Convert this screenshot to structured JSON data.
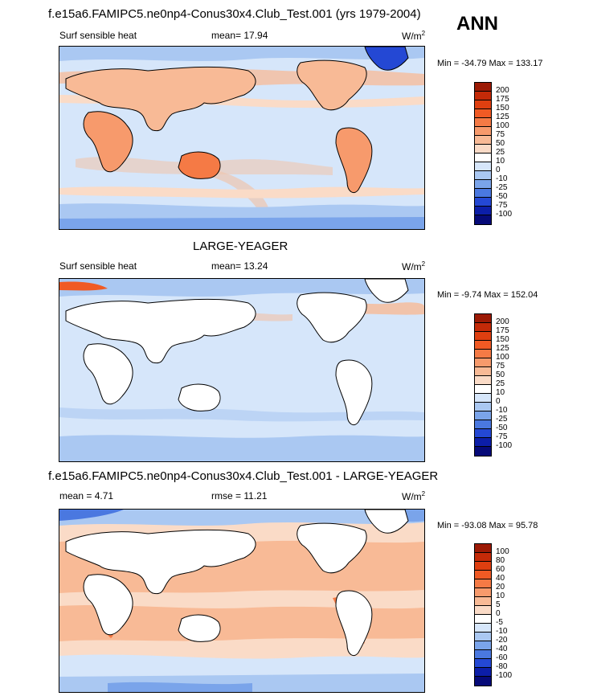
{
  "season": "ANN",
  "panels": [
    {
      "title": "f.e15a6.FAMIPC5.ne0np4-Conus30x4.Club_Test.001 (yrs 1979-2004)",
      "left_label": "Surf sensible heat",
      "mid_label": "mean=  17.94",
      "units": "W/m",
      "units_sup": "2",
      "minmax": "Min = -34.79 Max = 133.17",
      "colorbar": {
        "levels": [
          "200",
          "175",
          "150",
          "125",
          "100",
          "75",
          "50",
          "25",
          "10",
          "0",
          "-10",
          "-25",
          "-50",
          "-75",
          "-100"
        ],
        "colors": [
          "#9c1a05",
          "#c42a08",
          "#df3f10",
          "#f05a24",
          "#f57a45",
          "#f79a6c",
          "#f8ba96",
          "#fadbc7",
          "#ffffff",
          "#d6e6fa",
          "#aac8f2",
          "#7aa4ea",
          "#4a78e0",
          "#2448d4",
          "#0c1ea8",
          "#060a78"
        ]
      }
    },
    {
      "title": "LARGE-YEAGER",
      "left_label": "Surf sensible heat",
      "mid_label": "mean=  13.24",
      "units": "W/m",
      "units_sup": "2",
      "minmax": "Min =  -9.74 Max = 152.04",
      "colorbar": {
        "levels": [
          "200",
          "175",
          "150",
          "125",
          "100",
          "75",
          "50",
          "25",
          "10",
          "0",
          "-10",
          "-25",
          "-50",
          "-75",
          "-100"
        ],
        "colors": [
          "#9c1a05",
          "#c42a08",
          "#df3f10",
          "#f05a24",
          "#f57a45",
          "#f79a6c",
          "#f8ba96",
          "#fadbc7",
          "#ffffff",
          "#d6e6fa",
          "#aac8f2",
          "#7aa4ea",
          "#4a78e0",
          "#2448d4",
          "#0c1ea8",
          "#060a78"
        ]
      }
    },
    {
      "title": "f.e15a6.FAMIPC5.ne0np4-Conus30x4.Club_Test.001 - LARGE-YEAGER",
      "left_label": "mean =   4.71",
      "mid_label": "rmse =  11.21",
      "units": "W/m",
      "units_sup": "2",
      "minmax": "Min = -93.08 Max =  95.78",
      "colorbar": {
        "levels": [
          "100",
          "80",
          "60",
          "40",
          "20",
          "10",
          "5",
          "0",
          "-5",
          "-10",
          "-20",
          "-40",
          "-60",
          "-80",
          "-100"
        ],
        "colors": [
          "#9c1a05",
          "#c42a08",
          "#df3f10",
          "#f05a24",
          "#f57a45",
          "#f79a6c",
          "#f8ba96",
          "#fadbc7",
          "#ffffff",
          "#d6e6fa",
          "#aac8f2",
          "#7aa4ea",
          "#4a78e0",
          "#2448d4",
          "#0c1ea8",
          "#060a78"
        ]
      }
    }
  ]
}
